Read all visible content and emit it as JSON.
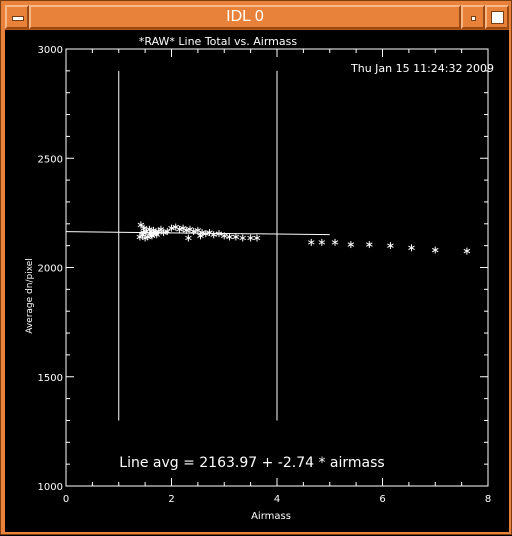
{
  "window": {
    "title": "IDL 0"
  },
  "plot": {
    "title": "*RAW* Line Total vs. Airmass",
    "timestamp": "Thu Jan 15 11:24:32 2009",
    "fit_text": "Line avg = 2163.97 + -2.74 * airmass"
  },
  "chart_data": {
    "type": "scatter",
    "title": "*RAW* Line Total vs. Airmass",
    "xlabel": "Airmass",
    "ylabel": "Average dn/pixel",
    "xlim": [
      0,
      8
    ],
    "ylim": [
      1000,
      3000
    ],
    "xticks": [
      "0",
      "2",
      "4",
      "6",
      "8"
    ],
    "yticks": [
      "1000",
      "1500",
      "2000",
      "2500",
      "3000"
    ],
    "vertical_lines_x": [
      1.0,
      4.0
    ],
    "fit": {
      "intercept": 2163.97,
      "slope": -2.74,
      "xrange": [
        0,
        5.0
      ]
    },
    "series": [
      {
        "marker": "asterisk",
        "x": [
          1.4,
          1.42,
          1.45,
          1.48,
          1.5,
          1.52,
          1.55,
          1.58,
          1.6,
          1.63,
          1.66,
          1.7,
          1.72,
          1.75,
          1.8,
          1.85,
          1.92,
          2.0,
          2.08,
          2.15,
          2.22,
          2.28,
          2.35,
          2.42,
          2.5,
          2.58,
          2.65,
          2.72,
          2.8,
          2.9,
          3.0,
          3.1,
          3.22,
          3.35,
          3.5,
          3.62,
          4.65,
          4.85,
          5.1,
          5.4,
          5.75,
          6.15,
          6.55,
          7.0,
          7.6,
          2.32,
          2.55,
          1.47,
          1.62
        ],
        "y": [
          2140,
          2195,
          2150,
          2180,
          2135,
          2165,
          2140,
          2175,
          2155,
          2145,
          2170,
          2160,
          2150,
          2165,
          2175,
          2160,
          2165,
          2180,
          2185,
          2175,
          2180,
          2170,
          2175,
          2165,
          2170,
          2160,
          2155,
          2160,
          2150,
          2155,
          2145,
          2140,
          2140,
          2135,
          2135,
          2135,
          2115,
          2115,
          2115,
          2105,
          2105,
          2100,
          2090,
          2080,
          2075,
          2135,
          2145,
          2160,
          2150
        ]
      }
    ]
  }
}
